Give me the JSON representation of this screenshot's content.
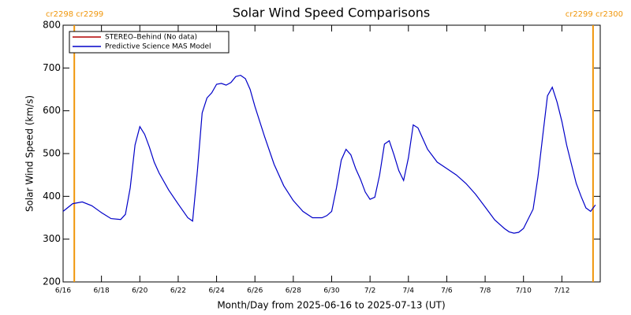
{
  "chart_data": {
    "type": "line",
    "title": "Solar Wind Speed Comparisons",
    "xlabel": "Month/Day from 2025-06-16 to 2025-07-13 (UT)",
    "ylabel": "Solar Wind Speed (km/s)",
    "xlim": [
      "2025-06-16T00:00",
      "2025-07-14T00:00"
    ],
    "ylim": [
      200,
      800
    ],
    "yticks": [
      200,
      300,
      400,
      500,
      600,
      700,
      800
    ],
    "xticks": [
      {
        "value": "2025-06-16",
        "label": "6/16"
      },
      {
        "value": "2025-06-18",
        "label": "6/18"
      },
      {
        "value": "2025-06-20",
        "label": "6/20"
      },
      {
        "value": "2025-06-22",
        "label": "6/22"
      },
      {
        "value": "2025-06-24",
        "label": "6/24"
      },
      {
        "value": "2025-06-26",
        "label": "6/26"
      },
      {
        "value": "2025-06-28",
        "label": "6/28"
      },
      {
        "value": "2025-06-30",
        "label": "6/30"
      },
      {
        "value": "2025-07-02",
        "label": "7/2"
      },
      {
        "value": "2025-07-04",
        "label": "7/4"
      },
      {
        "value": "2025-07-06",
        "label": "7/6"
      },
      {
        "value": "2025-07-08",
        "label": "7/8"
      },
      {
        "value": "2025-07-10",
        "label": "7/10"
      },
      {
        "value": "2025-07-12",
        "label": "7/12"
      }
    ],
    "markers": [
      {
        "x": "2025-06-16T14:00",
        "label": "cr2298 cr2299",
        "color": "#f0960a"
      },
      {
        "x": "2025-07-13T15:00",
        "label": "cr2299 cr2300",
        "color": "#f0960a"
      }
    ],
    "legend": "upper left",
    "x": [
      "2025-06-16T00:00",
      "2025-06-16T12:00",
      "2025-06-17T00:00",
      "2025-06-17T12:00",
      "2025-06-18T00:00",
      "2025-06-18T12:00",
      "2025-06-19T00:00",
      "2025-06-19T06:00",
      "2025-06-19T12:00",
      "2025-06-19T18:00",
      "2025-06-20T00:00",
      "2025-06-20T06:00",
      "2025-06-20T12:00",
      "2025-06-20T18:00",
      "2025-06-21T00:00",
      "2025-06-21T12:00",
      "2025-06-22T00:00",
      "2025-06-22T12:00",
      "2025-06-22T18:00",
      "2025-06-23T00:00",
      "2025-06-23T06:00",
      "2025-06-23T12:00",
      "2025-06-23T18:00",
      "2025-06-24T00:00",
      "2025-06-24T06:00",
      "2025-06-24T12:00",
      "2025-06-24T18:00",
      "2025-06-25T00:00",
      "2025-06-25T06:00",
      "2025-06-25T12:00",
      "2025-06-25T18:00",
      "2025-06-26T00:00",
      "2025-06-26T12:00",
      "2025-06-27T00:00",
      "2025-06-27T12:00",
      "2025-06-28T00:00",
      "2025-06-28T12:00",
      "2025-06-29T00:00",
      "2025-06-29T12:00",
      "2025-06-29T18:00",
      "2025-06-30T00:00",
      "2025-06-30T06:00",
      "2025-06-30T12:00",
      "2025-06-30T18:00",
      "2025-07-01T00:00",
      "2025-07-01T06:00",
      "2025-07-01T12:00",
      "2025-07-01T18:00",
      "2025-07-02T00:00",
      "2025-07-02T06:00",
      "2025-07-02T12:00",
      "2025-07-02T18:00",
      "2025-07-03T00:00",
      "2025-07-03T06:00",
      "2025-07-03T12:00",
      "2025-07-03T18:00",
      "2025-07-04T00:00",
      "2025-07-04T06:00",
      "2025-07-04T12:00",
      "2025-07-04T18:00",
      "2025-07-05T00:00",
      "2025-07-05T12:00",
      "2025-07-06T00:00",
      "2025-07-06T12:00",
      "2025-07-07T00:00",
      "2025-07-07T12:00",
      "2025-07-08T00:00",
      "2025-07-08T12:00",
      "2025-07-09T00:00",
      "2025-07-09T06:00",
      "2025-07-09T12:00",
      "2025-07-09T18:00",
      "2025-07-10T00:00",
      "2025-07-10T12:00",
      "2025-07-10T18:00",
      "2025-07-11T00:00",
      "2025-07-11T06:00",
      "2025-07-11T12:00",
      "2025-07-11T18:00",
      "2025-07-12T00:00",
      "2025-07-12T06:00",
      "2025-07-12T12:00",
      "2025-07-12T18:00",
      "2025-07-13T00:00",
      "2025-07-13T06:00",
      "2025-07-13T12:00",
      "2025-07-13T18:00"
    ],
    "series": [
      {
        "name": "STEREO–Behind (No data)",
        "color": "#b40000",
        "values": [
          null,
          null,
          null,
          null,
          null,
          null,
          null,
          null,
          null,
          null,
          null,
          null,
          null,
          null,
          null,
          null,
          null,
          null,
          null,
          null,
          null,
          null,
          null,
          null,
          null,
          null,
          null,
          null,
          null,
          null,
          null,
          null,
          null,
          null,
          null,
          null,
          null,
          null,
          null,
          null,
          null,
          null,
          null,
          null,
          null,
          null,
          null,
          null,
          null,
          null,
          null,
          null,
          null,
          null,
          null,
          null,
          null,
          null,
          null,
          null,
          null,
          null,
          null,
          null,
          null,
          null,
          null,
          null,
          null,
          null,
          null,
          null,
          null,
          null,
          null,
          null,
          null,
          null,
          null,
          null,
          null,
          null,
          null,
          null,
          null,
          null,
          null
        ]
      },
      {
        "name": "Predictive Science MAS Model",
        "color": "#0000c8",
        "values": [
          365,
          383,
          387,
          378,
          362,
          348,
          346,
          358,
          420,
          520,
          563,
          545,
          515,
          480,
          455,
          415,
          382,
          350,
          342,
          460,
          595,
          630,
          642,
          662,
          664,
          660,
          666,
          680,
          683,
          675,
          650,
          610,
          540,
          475,
          425,
          390,
          365,
          350,
          350,
          355,
          365,
          420,
          485,
          510,
          497,
          465,
          440,
          410,
          393,
          398,
          450,
          522,
          530,
          497,
          460,
          437,
          490,
          567,
          560,
          535,
          510,
          480,
          465,
          450,
          430,
          405,
          375,
          345,
          325,
          317,
          314,
          316,
          325,
          370,
          445,
          540,
          635,
          655,
          620,
          575,
          520,
          475,
          430,
          400,
          373,
          365,
          380
        ]
      }
    ]
  }
}
